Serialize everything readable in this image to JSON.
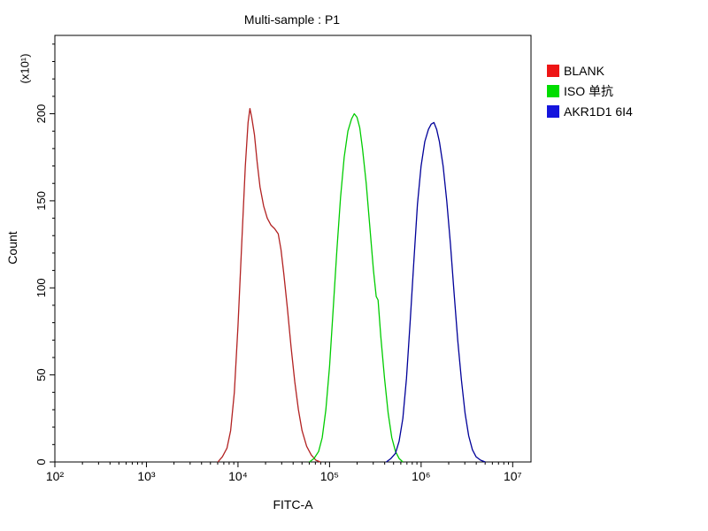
{
  "title": "Multi-sample : P1",
  "axes": {
    "xlabel": "FITC-A",
    "ylabel": "Count",
    "y_unit": "(x10¹)"
  },
  "legend": {
    "items": [
      {
        "label": "BLANK",
        "color": "#ee1515"
      },
      {
        "label": "ISO 单抗",
        "color": "#00dd00"
      },
      {
        "label": "AKR1D1 6I4",
        "color": "#1515dd"
      }
    ]
  },
  "chart_data": {
    "type": "line",
    "title": "Multi-sample : P1",
    "xlabel": "FITC-A",
    "ylabel": "Count",
    "y_unit_multiplier": "(x10¹)",
    "x_scale": "log10",
    "xlim": [
      2,
      7.2
    ],
    "ylim": [
      0,
      245
    ],
    "grid": false,
    "legend_position": "right-top-outside",
    "xticks": [
      {
        "exp": 2,
        "label": "10²"
      },
      {
        "exp": 3,
        "label": "10³"
      },
      {
        "exp": 4,
        "label": "10⁴"
      },
      {
        "exp": 5,
        "label": "10⁵"
      },
      {
        "exp": 6,
        "label": "10⁶"
      },
      {
        "exp": 7,
        "label": "10⁷"
      }
    ],
    "yticks": [
      0,
      50,
      100,
      150,
      200
    ],
    "y_minor_step": 10,
    "series": [
      {
        "name": "BLANK",
        "color": "#b22222",
        "log_x": [
          3.78,
          3.83,
          3.88,
          3.92,
          3.96,
          4.0,
          4.04,
          4.08,
          4.11,
          4.13,
          4.15,
          4.18,
          4.21,
          4.24,
          4.28,
          4.32,
          4.36,
          4.4,
          4.44,
          4.47,
          4.5,
          4.54,
          4.58,
          4.62,
          4.66,
          4.7,
          4.75,
          4.8,
          4.85,
          4.9
        ],
        "y": [
          0,
          3,
          8,
          18,
          40,
          78,
          125,
          170,
          195,
          203,
          198,
          188,
          172,
          158,
          147,
          140,
          136,
          134,
          131,
          122,
          108,
          88,
          66,
          46,
          30,
          18,
          9,
          4,
          1,
          0
        ]
      },
      {
        "name": "ISO 单抗",
        "color": "#00cc00",
        "log_x": [
          4.78,
          4.83,
          4.88,
          4.92,
          4.96,
          5.0,
          5.04,
          5.08,
          5.12,
          5.16,
          5.2,
          5.24,
          5.27,
          5.3,
          5.33,
          5.36,
          5.4,
          5.44,
          5.48,
          5.51,
          5.53,
          5.56,
          5.6,
          5.64,
          5.68,
          5.72,
          5.76,
          5.8
        ],
        "y": [
          0,
          2,
          6,
          14,
          30,
          55,
          88,
          122,
          152,
          175,
          190,
          197,
          200,
          198,
          192,
          180,
          160,
          135,
          110,
          95,
          93,
          72,
          48,
          28,
          14,
          6,
          2,
          0
        ]
      },
      {
        "name": "AKR1D1 6I4",
        "color": "#000099",
        "log_x": [
          5.62,
          5.67,
          5.72,
          5.76,
          5.8,
          5.84,
          5.88,
          5.92,
          5.96,
          6.0,
          6.04,
          6.08,
          6.11,
          6.14,
          6.17,
          6.2,
          6.24,
          6.28,
          6.32,
          6.36,
          6.4,
          6.44,
          6.48,
          6.52,
          6.56,
          6.6,
          6.65,
          6.7
        ],
        "y": [
          0,
          2,
          5,
          12,
          25,
          48,
          80,
          115,
          148,
          170,
          184,
          191,
          194,
          195,
          191,
          184,
          170,
          150,
          125,
          97,
          70,
          47,
          28,
          15,
          7,
          3,
          1,
          0
        ]
      }
    ]
  }
}
